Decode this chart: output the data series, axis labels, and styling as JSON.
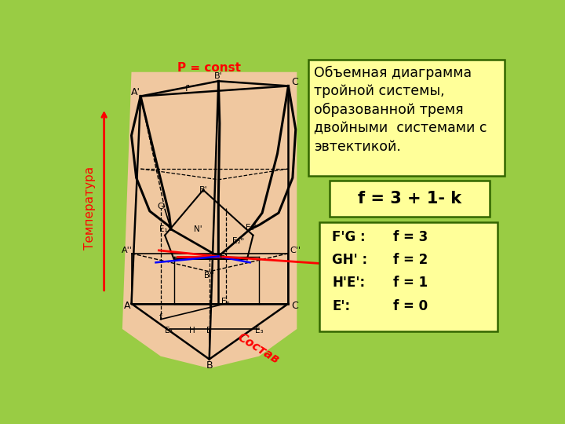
{
  "bg_color": "#99cc44",
  "diagram_bg": "#f0c8a0",
  "title_box_text": "Объемная диаграмма\nтройной системы,\nобразованной тремя\nдвойными  системами с\nэвтектикой.",
  "formula_text": "f = 3 + 1- k",
  "legend_lines": [
    "F’G :    f = 3",
    "GH’ :    f = 2",
    "H’E’:    f = 1",
    "E’:         f = 0"
  ],
  "p_const_text": "P = const",
  "temp_text": "Температура",
  "sostav_text": "Состав"
}
